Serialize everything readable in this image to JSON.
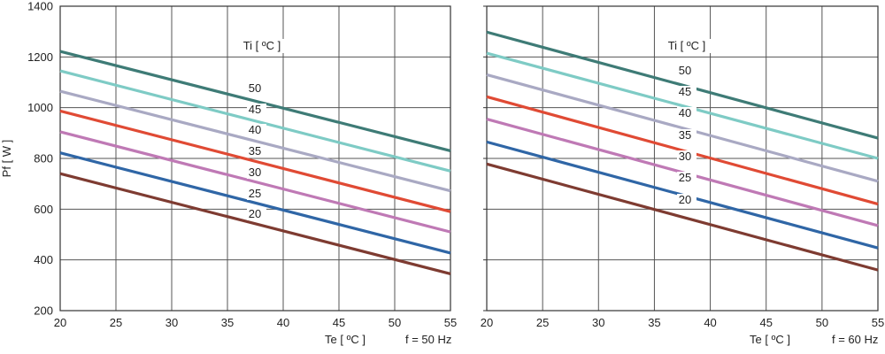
{
  "chart_data": [
    {
      "type": "line",
      "id": "left",
      "xlabel": "Te  [ ºC ]",
      "ylabel": "Pf  [ W ]",
      "condition": "f = 50 Hz",
      "legend_title": "Ti  [ ºC ]",
      "xlim": [
        20,
        55
      ],
      "ylim": [
        200,
        1400
      ],
      "x_ticks": [
        20,
        25,
        30,
        35,
        40,
        45,
        50,
        55
      ],
      "y_ticks": [
        200,
        400,
        600,
        800,
        1000,
        1200,
        1400
      ],
      "grid": true,
      "series": [
        {
          "name": "50",
          "color": "#3e7b76",
          "x": [
            20,
            55
          ],
          "y": [
            1222,
            830
          ]
        },
        {
          "name": "45",
          "color": "#7ecbc5",
          "x": [
            20,
            55
          ],
          "y": [
            1145,
            750
          ]
        },
        {
          "name": "40",
          "color": "#a9a9c3",
          "x": [
            20,
            55
          ],
          "y": [
            1065,
            672
          ]
        },
        {
          "name": "35",
          "color": "#e04a34",
          "x": [
            20,
            55
          ],
          "y": [
            987,
            590
          ]
        },
        {
          "name": "30",
          "color": "#bf79b5",
          "x": [
            20,
            55
          ],
          "y": [
            905,
            510
          ]
        },
        {
          "name": "25",
          "color": "#2f66a6",
          "x": [
            20,
            55
          ],
          "y": [
            822,
            427
          ]
        },
        {
          "name": "20",
          "color": "#7e3b31",
          "x": [
            20,
            55
          ],
          "y": [
            740,
            345
          ]
        }
      ]
    },
    {
      "type": "line",
      "id": "right",
      "xlabel": "Te  [ ºC ]",
      "ylabel": "",
      "condition": "f = 60 Hz",
      "legend_title": "Ti  [ ºC ]",
      "xlim": [
        20,
        55
      ],
      "ylim": [
        200,
        1400
      ],
      "x_ticks": [
        20,
        25,
        30,
        35,
        40,
        45,
        50,
        55
      ],
      "y_ticks": [],
      "grid": true,
      "series": [
        {
          "name": "50",
          "color": "#3e7b76",
          "x": [
            20,
            55
          ],
          "y": [
            1298,
            880
          ]
        },
        {
          "name": "45",
          "color": "#7ecbc5",
          "x": [
            20,
            55
          ],
          "y": [
            1215,
            800
          ]
        },
        {
          "name": "40",
          "color": "#a9a9c3",
          "x": [
            20,
            55
          ],
          "y": [
            1130,
            710
          ]
        },
        {
          "name": "35",
          "color": "#e04a34",
          "x": [
            20,
            55
          ],
          "y": [
            1043,
            620
          ]
        },
        {
          "name": "30",
          "color": "#bf79b5",
          "x": [
            20,
            55
          ],
          "y": [
            955,
            535
          ]
        },
        {
          "name": "25",
          "color": "#2f66a6",
          "x": [
            20,
            55
          ],
          "y": [
            865,
            447
          ]
        },
        {
          "name": "20",
          "color": "#7e3b31",
          "x": [
            20,
            55
          ],
          "y": [
            778,
            360
          ]
        }
      ]
    }
  ]
}
